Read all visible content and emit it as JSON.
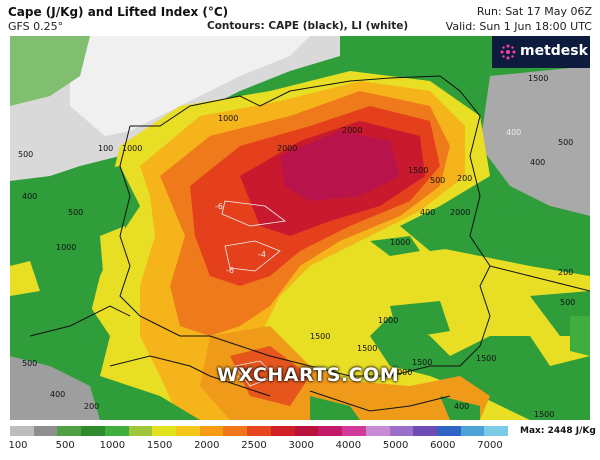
{
  "header": {
    "title": "Cape (J/Kg) and Lifted Index (°C)",
    "model": "GFS 0.25°",
    "contours": "Contours: CAPE (black), LI (white)",
    "run": "Run: Sat 17 May 06Z",
    "valid": "Valid: Sun 1 Jun 18:00 UTC"
  },
  "brand": {
    "name": "metdesk",
    "watermark": "WXCHARTS.COM"
  },
  "map_labels": {
    "l1": "1000",
    "l2": "2000",
    "l3": "2000",
    "l4": "1000",
    "l5": "500",
    "l6": "400",
    "l7": "500",
    "l8": "1000",
    "l9": "1500",
    "l10": "1500",
    "l11": "1000",
    "l12": "1500",
    "l13": "1500",
    "l14": "1500",
    "l15": "400",
    "l16": "500",
    "l17": "400",
    "l18": "200",
    "l19": "500",
    "l20": "1000",
    "l21": "2000",
    "l22": "1500",
    "l23": "400",
    "l24": "100",
    "l25": "-6",
    "l26": "-6",
    "l27": "-4",
    "l28": "-2",
    "l29": "500",
    "l30": "200",
    "l31": "1000",
    "l32": "500",
    "l33": "400",
    "l34": "200",
    "l35": "400",
    "l36": "1500"
  },
  "legend": {
    "ticks": [
      "100",
      "500",
      "1000",
      "1500",
      "2000",
      "2500",
      "3000",
      "4000",
      "5000",
      "6000",
      "7000"
    ],
    "max_label": "Max: 2448 J/Kg",
    "colors": [
      "#bdbdbd",
      "#8e8e8e",
      "#4f9f45",
      "#2e8b2e",
      "#3fae3f",
      "#a0c63a",
      "#e3e21f",
      "#f4c619",
      "#f59c12",
      "#f0771a",
      "#e5461c",
      "#d02226",
      "#b8133d",
      "#c21a69",
      "#d23a99",
      "#c78bd6",
      "#9b6fc9",
      "#6f4bb6",
      "#2f63c4",
      "#4aa3d6",
      "#7ccbe6"
    ]
  }
}
